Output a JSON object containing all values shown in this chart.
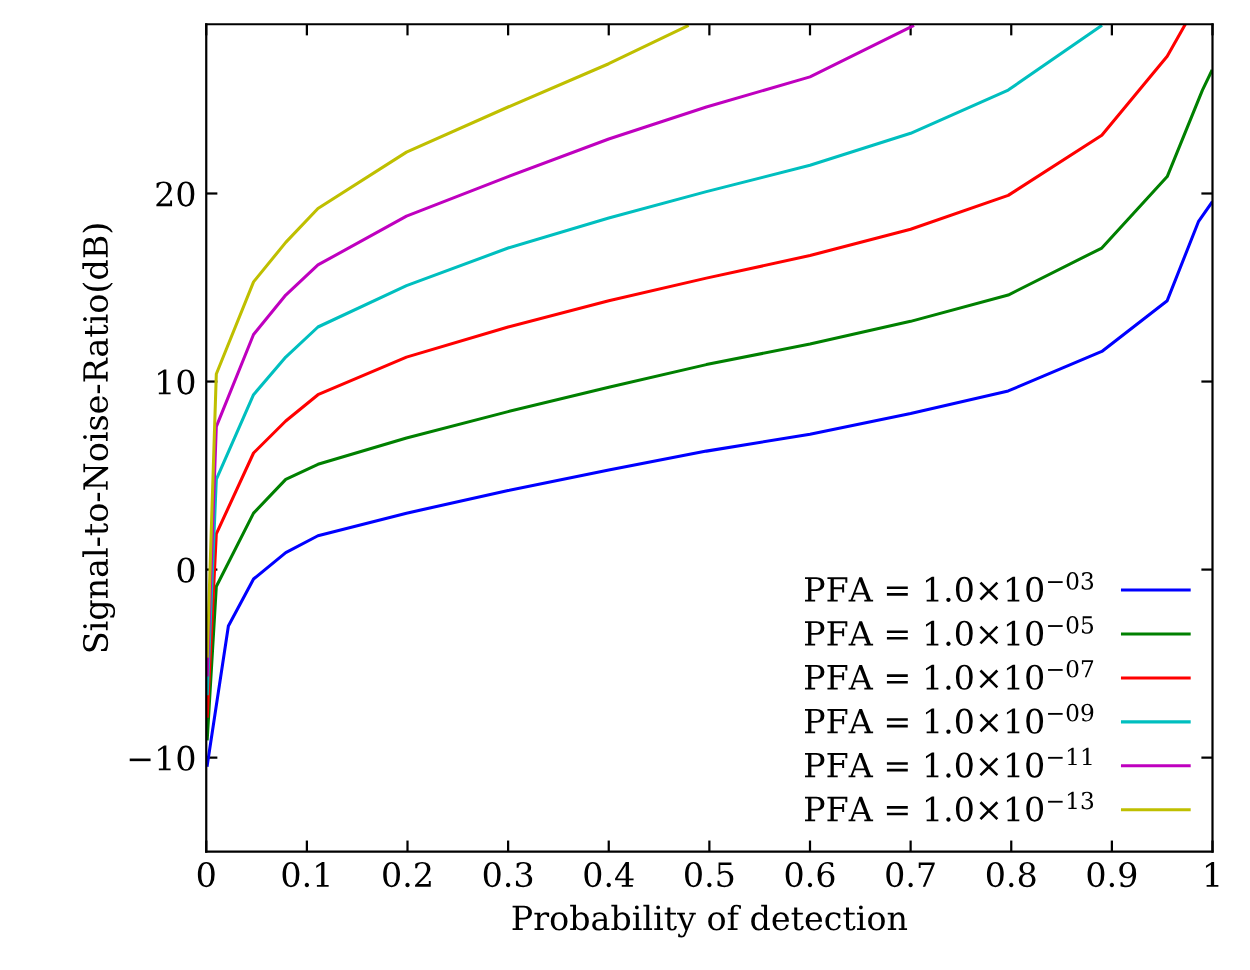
{
  "chart_data": {
    "type": "line",
    "xlabel": "Probability of detection",
    "ylabel": "Signal-to-Noise-Ratio(dB)",
    "xlim": [
      0,
      1
    ],
    "ylim": [
      -15,
      29
    ],
    "xticks": [
      0,
      0.1,
      0.2,
      0.3,
      0.4,
      0.5,
      0.6,
      0.7,
      0.8,
      0.9,
      1
    ],
    "yticks": [
      {
        "value": -10,
        "label": "−10"
      },
      0,
      10,
      20
    ],
    "grid": false,
    "legend": "bottom right",
    "marker": "none",
    "line_style": "solid",
    "series": [
      {
        "name": "PFA = 1.0×10$^{−03}$",
        "color": "#0000ff",
        "x": [
          0.001,
          0.022,
          0.047,
          0.079,
          0.111,
          0.199,
          0.3,
          0.4,
          0.497,
          0.6,
          0.7,
          0.797,
          0.89,
          0.955,
          0.986,
          0.999
        ],
        "values": [
          -10.4,
          -3.0,
          -0.5,
          0.9,
          1.8,
          3.0,
          4.2,
          5.3,
          6.3,
          7.2,
          8.3,
          9.5,
          11.6,
          14.3,
          18.5,
          19.5
        ]
      },
      {
        "name": "PFA = 1.0×10$^{−05}$",
        "color": "#008000",
        "x": [
          0.001,
          0.01,
          0.047,
          0.079,
          0.111,
          0.199,
          0.3,
          0.4,
          0.497,
          0.6,
          0.7,
          0.797,
          0.89,
          0.955,
          0.99,
          0.999
        ],
        "values": [
          -9.0,
          -0.9,
          3.0,
          4.8,
          5.6,
          7.0,
          8.4,
          9.7,
          10.9,
          12.0,
          13.2,
          14.6,
          17.1,
          20.9,
          25.5,
          26.5
        ]
      },
      {
        "name": "PFA = 1.0×10$^{−07}$",
        "color": "#ff0000",
        "x": [
          0.001,
          0.01,
          0.047,
          0.079,
          0.111,
          0.199,
          0.3,
          0.4,
          0.497,
          0.6,
          0.7,
          0.797,
          0.89,
          0.955,
          0.973
        ],
        "values": [
          -7.8,
          1.9,
          6.2,
          7.9,
          9.3,
          11.3,
          12.9,
          14.3,
          15.5,
          16.7,
          18.1,
          19.9,
          23.1,
          27.3,
          29.0
        ]
      },
      {
        "name": "PFA = 1.0×10$^{−09}$",
        "color": "#00bfbf",
        "x": [
          0.001,
          0.01,
          0.047,
          0.079,
          0.111,
          0.199,
          0.3,
          0.4,
          0.497,
          0.6,
          0.7,
          0.797,
          0.889
        ],
        "values": [
          -6.6,
          4.8,
          9.3,
          11.3,
          12.9,
          15.1,
          17.1,
          18.7,
          20.1,
          21.5,
          23.2,
          25.5,
          28.9
        ]
      },
      {
        "name": "PFA = 1.0×10$^{−11}$",
        "color": "#bf00bf",
        "x": [
          0.001,
          0.01,
          0.047,
          0.079,
          0.111,
          0.199,
          0.3,
          0.4,
          0.497,
          0.6,
          0.702
        ],
        "values": [
          -5.6,
          7.6,
          12.5,
          14.6,
          16.2,
          18.8,
          20.9,
          22.9,
          24.6,
          26.2,
          28.9
        ]
      },
      {
        "name": "PFA = 1.0×10$^{−13}$",
        "color": "#bfbf00",
        "x": [
          0.001,
          0.01,
          0.047,
          0.079,
          0.111,
          0.199,
          0.3,
          0.4,
          0.478
        ],
        "values": [
          -4.6,
          10.4,
          15.3,
          17.4,
          19.2,
          22.2,
          24.6,
          26.9,
          28.9
        ]
      }
    ]
  }
}
